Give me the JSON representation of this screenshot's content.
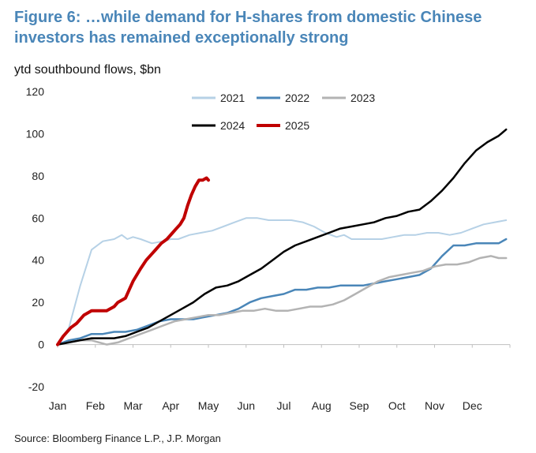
{
  "title": "Figure 6: …while demand for H-shares from domestic Chinese investors has remained exceptionally strong",
  "subtitle": "ytd southbound flows, $bn",
  "source": "Source: Bloomberg Finance L.P., J.P. Morgan",
  "chart_data": {
    "type": "line",
    "x_labels": [
      "Jan",
      "Feb",
      "Mar",
      "Apr",
      "May",
      "Jun",
      "Jul",
      "Aug",
      "Sep",
      "Oct",
      "Nov",
      "Dec"
    ],
    "xlim": [
      0,
      12
    ],
    "ylim": [
      -20,
      120
    ],
    "y_ticks": [
      -20,
      0,
      20,
      40,
      60,
      80,
      100,
      120
    ],
    "ylabel": "ytd southbound flows, $bn",
    "legend_position": "top-center",
    "series": [
      {
        "name": "2021",
        "color": "#b6d1e6",
        "width": 2,
        "points": [
          [
            0,
            0
          ],
          [
            0.3,
            8
          ],
          [
            0.6,
            28
          ],
          [
            0.9,
            45
          ],
          [
            1.2,
            49
          ],
          [
            1.5,
            50
          ],
          [
            1.7,
            52
          ],
          [
            1.85,
            50
          ],
          [
            2.0,
            51
          ],
          [
            2.2,
            50
          ],
          [
            2.5,
            48
          ],
          [
            2.8,
            49
          ],
          [
            3.0,
            50
          ],
          [
            3.2,
            50
          ],
          [
            3.5,
            52
          ],
          [
            3.8,
            53
          ],
          [
            4.1,
            54
          ],
          [
            4.4,
            56
          ],
          [
            4.7,
            58
          ],
          [
            5.0,
            60
          ],
          [
            5.3,
            60
          ],
          [
            5.6,
            59
          ],
          [
            5.9,
            59
          ],
          [
            6.2,
            59
          ],
          [
            6.5,
            58
          ],
          [
            6.8,
            56
          ],
          [
            7.1,
            53
          ],
          [
            7.4,
            51
          ],
          [
            7.6,
            52
          ],
          [
            7.8,
            50
          ],
          [
            8.0,
            50
          ],
          [
            8.3,
            50
          ],
          [
            8.6,
            50
          ],
          [
            8.9,
            51
          ],
          [
            9.2,
            52
          ],
          [
            9.5,
            52
          ],
          [
            9.8,
            53
          ],
          [
            10.1,
            53
          ],
          [
            10.4,
            52
          ],
          [
            10.7,
            53
          ],
          [
            11.0,
            55
          ],
          [
            11.3,
            57
          ],
          [
            11.6,
            58
          ],
          [
            11.9,
            59
          ]
        ]
      },
      {
        "name": "2022",
        "color": "#4a86b8",
        "width": 2.5,
        "points": [
          [
            0,
            0
          ],
          [
            0.3,
            2
          ],
          [
            0.6,
            3
          ],
          [
            0.9,
            5
          ],
          [
            1.2,
            5
          ],
          [
            1.5,
            6
          ],
          [
            1.8,
            6
          ],
          [
            2.1,
            7
          ],
          [
            2.4,
            9
          ],
          [
            2.7,
            11
          ],
          [
            3.0,
            12
          ],
          [
            3.3,
            12
          ],
          [
            3.6,
            12
          ],
          [
            3.9,
            13
          ],
          [
            4.2,
            14
          ],
          [
            4.5,
            15
          ],
          [
            4.8,
            17
          ],
          [
            5.1,
            20
          ],
          [
            5.4,
            22
          ],
          [
            5.7,
            23
          ],
          [
            6.0,
            24
          ],
          [
            6.3,
            26
          ],
          [
            6.6,
            26
          ],
          [
            6.9,
            27
          ],
          [
            7.2,
            27
          ],
          [
            7.5,
            28
          ],
          [
            7.8,
            28
          ],
          [
            8.1,
            28
          ],
          [
            8.4,
            29
          ],
          [
            8.7,
            30
          ],
          [
            9.0,
            31
          ],
          [
            9.3,
            32
          ],
          [
            9.6,
            33
          ],
          [
            9.9,
            36
          ],
          [
            10.2,
            42
          ],
          [
            10.5,
            47
          ],
          [
            10.8,
            47
          ],
          [
            11.1,
            48
          ],
          [
            11.4,
            48
          ],
          [
            11.7,
            48
          ],
          [
            11.9,
            50
          ]
        ]
      },
      {
        "name": "2023",
        "color": "#b3b3b3",
        "width": 2.5,
        "points": [
          [
            0,
            0
          ],
          [
            0.3,
            1
          ],
          [
            0.6,
            2
          ],
          [
            0.9,
            2
          ],
          [
            1.1,
            1
          ],
          [
            1.3,
            0
          ],
          [
            1.6,
            1
          ],
          [
            1.9,
            3
          ],
          [
            2.2,
            5
          ],
          [
            2.5,
            7
          ],
          [
            2.8,
            9
          ],
          [
            3.1,
            11
          ],
          [
            3.4,
            12
          ],
          [
            3.7,
            13
          ],
          [
            4.0,
            14
          ],
          [
            4.3,
            14
          ],
          [
            4.6,
            15
          ],
          [
            4.9,
            16
          ],
          [
            5.2,
            16
          ],
          [
            5.5,
            17
          ],
          [
            5.8,
            16
          ],
          [
            6.1,
            16
          ],
          [
            6.4,
            17
          ],
          [
            6.7,
            18
          ],
          [
            7.0,
            18
          ],
          [
            7.3,
            19
          ],
          [
            7.6,
            21
          ],
          [
            7.9,
            24
          ],
          [
            8.2,
            27
          ],
          [
            8.5,
            30
          ],
          [
            8.8,
            32
          ],
          [
            9.1,
            33
          ],
          [
            9.4,
            34
          ],
          [
            9.7,
            35
          ],
          [
            10.0,
            37
          ],
          [
            10.3,
            38
          ],
          [
            10.6,
            38
          ],
          [
            10.9,
            39
          ],
          [
            11.2,
            41
          ],
          [
            11.5,
            42
          ],
          [
            11.7,
            41
          ],
          [
            11.9,
            41
          ]
        ]
      },
      {
        "name": "2024",
        "color": "#000000",
        "width": 2.5,
        "points": [
          [
            0,
            0
          ],
          [
            0.3,
            1
          ],
          [
            0.6,
            2
          ],
          [
            0.9,
            3
          ],
          [
            1.2,
            3
          ],
          [
            1.5,
            3
          ],
          [
            1.8,
            4
          ],
          [
            2.1,
            6
          ],
          [
            2.4,
            8
          ],
          [
            2.7,
            11
          ],
          [
            3.0,
            14
          ],
          [
            3.3,
            17
          ],
          [
            3.6,
            20
          ],
          [
            3.9,
            24
          ],
          [
            4.2,
            27
          ],
          [
            4.5,
            28
          ],
          [
            4.8,
            30
          ],
          [
            5.1,
            33
          ],
          [
            5.4,
            36
          ],
          [
            5.7,
            40
          ],
          [
            6.0,
            44
          ],
          [
            6.3,
            47
          ],
          [
            6.6,
            49
          ],
          [
            6.9,
            51
          ],
          [
            7.2,
            53
          ],
          [
            7.5,
            55
          ],
          [
            7.8,
            56
          ],
          [
            8.1,
            57
          ],
          [
            8.4,
            58
          ],
          [
            8.7,
            60
          ],
          [
            9.0,
            61
          ],
          [
            9.3,
            63
          ],
          [
            9.6,
            64
          ],
          [
            9.9,
            68
          ],
          [
            10.2,
            73
          ],
          [
            10.5,
            79
          ],
          [
            10.8,
            86
          ],
          [
            11.1,
            92
          ],
          [
            11.4,
            96
          ],
          [
            11.7,
            99
          ],
          [
            11.9,
            102
          ]
        ]
      },
      {
        "name": "2025",
        "color": "#c00000",
        "width": 4,
        "points": [
          [
            0,
            0
          ],
          [
            0.15,
            4
          ],
          [
            0.35,
            8
          ],
          [
            0.5,
            10
          ],
          [
            0.7,
            14
          ],
          [
            0.9,
            16
          ],
          [
            1.1,
            16
          ],
          [
            1.3,
            16
          ],
          [
            1.5,
            18
          ],
          [
            1.6,
            20
          ],
          [
            1.8,
            22
          ],
          [
            1.9,
            26
          ],
          [
            2.0,
            30
          ],
          [
            2.1,
            33
          ],
          [
            2.2,
            36
          ],
          [
            2.35,
            40
          ],
          [
            2.5,
            43
          ],
          [
            2.6,
            45
          ],
          [
            2.75,
            48
          ],
          [
            2.9,
            50
          ],
          [
            3.05,
            53
          ],
          [
            3.15,
            55
          ],
          [
            3.25,
            57
          ],
          [
            3.35,
            60
          ],
          [
            3.45,
            66
          ],
          [
            3.55,
            71
          ],
          [
            3.65,
            75
          ],
          [
            3.75,
            78
          ],
          [
            3.85,
            78
          ],
          [
            3.95,
            79
          ],
          [
            4.0,
            78
          ]
        ]
      }
    ]
  }
}
